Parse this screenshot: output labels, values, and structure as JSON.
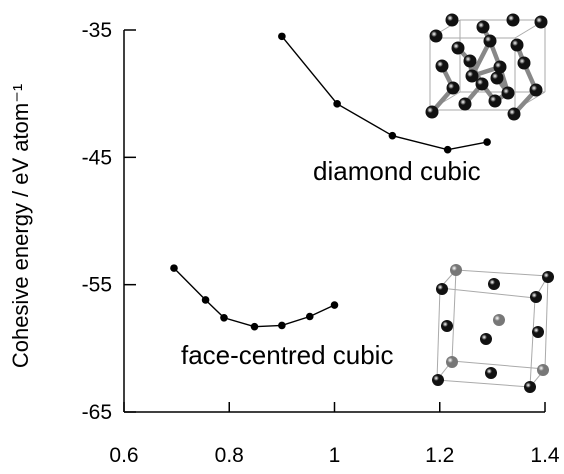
{
  "chart_data": {
    "type": "line",
    "title": "",
    "xlabel": "",
    "ylabel": "Cohesive energy / eV atom⁻¹",
    "xlim": [
      0.6,
      1.4
    ],
    "ylim": [
      -65,
      -35
    ],
    "x_ticks": [
      "0.6",
      "0.8",
      "1",
      "1.2",
      "1.4"
    ],
    "y_ticks": [
      "-35",
      "-45",
      "-55",
      "-65"
    ],
    "grid": false,
    "series": [
      {
        "name": "diamond cubic",
        "color": "#000000",
        "points": [
          {
            "x": 0.9,
            "y": -35.5
          },
          {
            "x": 1.005,
            "y": -40.8
          },
          {
            "x": 1.11,
            "y": -43.3
          },
          {
            "x": 1.215,
            "y": -44.4
          },
          {
            "x": 1.29,
            "y": -43.8
          }
        ]
      },
      {
        "name": "face-centred cubic",
        "color": "#000000",
        "points": [
          {
            "x": 0.695,
            "y": -53.7
          },
          {
            "x": 0.755,
            "y": -56.2
          },
          {
            "x": 0.79,
            "y": -57.6
          },
          {
            "x": 0.848,
            "y": -58.3
          },
          {
            "x": 0.9,
            "y": -58.2
          },
          {
            "x": 0.953,
            "y": -57.5
          },
          {
            "x": 1.0,
            "y": -56.6
          }
        ]
      }
    ],
    "annotations": [
      "diamond cubic",
      "face-centred cubic"
    ]
  },
  "insets": {
    "diamond_structure_icon": "diamond-cubic-lattice-icon",
    "fcc_structure_icon": "fcc-lattice-icon",
    "atom_color_dark": "#111111",
    "atom_color_grey": "#777777",
    "frame_color": "#aaaaaa"
  }
}
